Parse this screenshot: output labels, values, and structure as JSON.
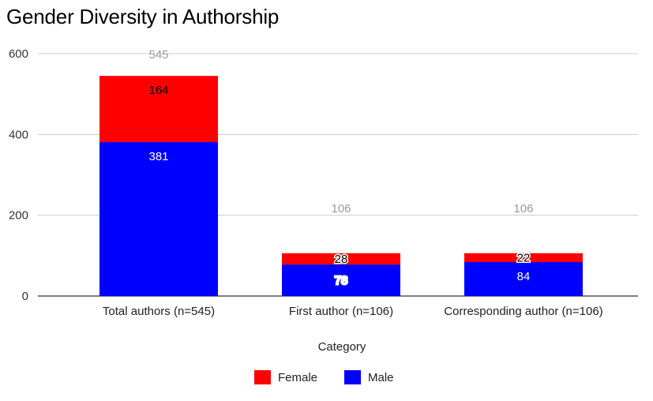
{
  "chart_data": {
    "type": "bar",
    "stacked": true,
    "title": "Gender Diversity in Authorship",
    "xlabel": "Category",
    "ylabel": "",
    "ylim": [
      0,
      600
    ],
    "yticks": [
      "0",
      "200",
      "400",
      "600"
    ],
    "grid": true,
    "legend_position": "bottom",
    "categories": [
      "Total authors (n=545)",
      "First author (n=106)",
      "Corresponding author (n=106)"
    ],
    "series": [
      {
        "name": "Male",
        "color": "#0000ff",
        "label_color": "#ffffff",
        "values": [
          381,
          78,
          84
        ]
      },
      {
        "name": "Female",
        "color": "#ff0000",
        "label_color": "#000000",
        "values": [
          164,
          28,
          22
        ]
      }
    ],
    "totals": [
      545,
      106,
      106
    ]
  }
}
